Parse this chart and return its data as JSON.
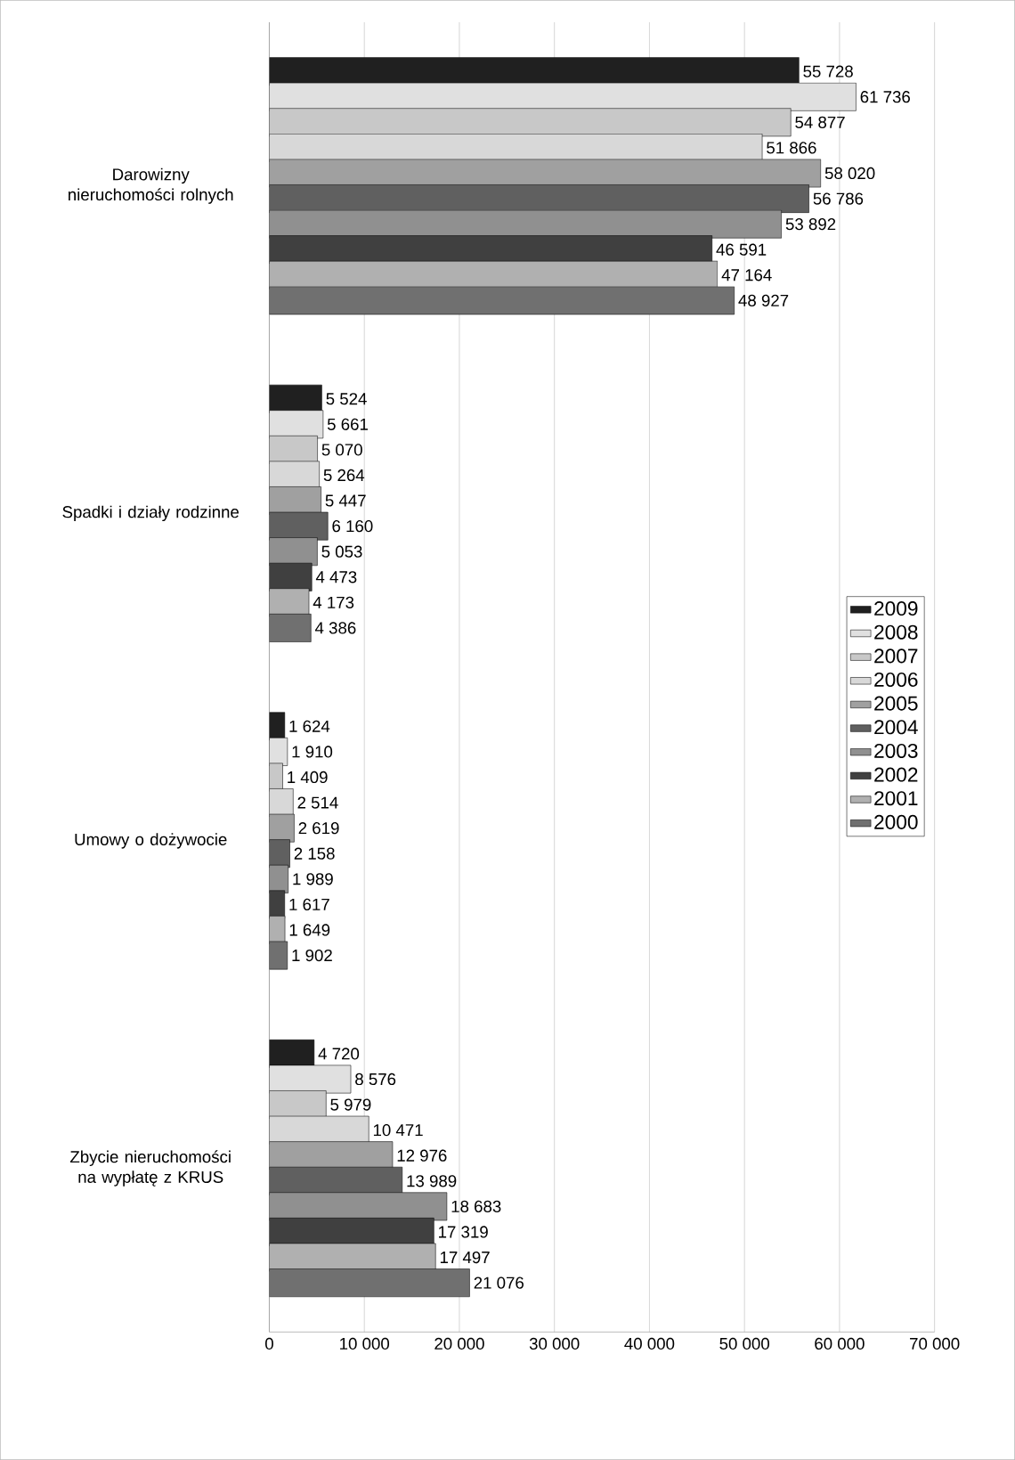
{
  "chart_data": {
    "type": "bar",
    "orientation": "horizontal",
    "categories": [
      "Darowizny nieruchomości rolnych",
      "Spadki i działy rodzinne",
      "Umowy o dożywocie",
      "Zbycie nieruchomości na wypłatę z KRUS"
    ],
    "series": [
      {
        "name": "2009",
        "color": "#202020",
        "values": [
          55728,
          5524,
          1624,
          4720
        ],
        "value_labels": [
          "55 728",
          "5 524",
          "1 624",
          "4 720"
        ]
      },
      {
        "name": "2008",
        "color": "#e0e0e0",
        "values": [
          61736,
          5661,
          1910,
          8576
        ],
        "value_labels": [
          "61 736",
          "5 661",
          "1 910",
          "8 576"
        ]
      },
      {
        "name": "2007",
        "color": "#c8c8c8",
        "values": [
          54877,
          5070,
          1409,
          5979
        ],
        "value_labels": [
          "54 877",
          "5 070",
          "1 409",
          "5 979"
        ]
      },
      {
        "name": "2006",
        "color": "#d8d8d8",
        "values": [
          51866,
          5264,
          2514,
          10471
        ],
        "value_labels": [
          "51 866",
          "5 264",
          "2 514",
          "10 471"
        ]
      },
      {
        "name": "2005",
        "color": "#a0a0a0",
        "values": [
          58020,
          5447,
          2619,
          12976
        ],
        "value_labels": [
          "58 020",
          "5 447",
          "2 619",
          "12 976"
        ]
      },
      {
        "name": "2004",
        "color": "#606060",
        "values": [
          56786,
          6160,
          2158,
          13989
        ],
        "value_labels": [
          "56 786",
          "6 160",
          "2 158",
          "13 989"
        ]
      },
      {
        "name": "2003",
        "color": "#909090",
        "values": [
          53892,
          5053,
          1989,
          18683
        ],
        "value_labels": [
          "53 892",
          "5 053",
          "1 989",
          "18 683"
        ]
      },
      {
        "name": "2002",
        "color": "#404040",
        "values": [
          46591,
          4473,
          1617,
          17319
        ],
        "value_labels": [
          "46 591",
          "4 473",
          "1 617",
          "17 319"
        ]
      },
      {
        "name": "2001",
        "color": "#b0b0b0",
        "values": [
          47164,
          4173,
          1649,
          17497
        ],
        "value_labels": [
          "47 164",
          "4 173",
          "1 649",
          "17 497"
        ]
      },
      {
        "name": "2000",
        "color": "#707070",
        "values": [
          48927,
          4386,
          1902,
          21076
        ],
        "value_labels": [
          "48 927",
          "4 386",
          "1 902",
          "21 076"
        ]
      }
    ],
    "xlim": [
      0,
      70000
    ],
    "xticks": [
      {
        "value": 0,
        "label": "0"
      },
      {
        "value": 10000,
        "label": "10 000"
      },
      {
        "value": 20000,
        "label": "20 000"
      },
      {
        "value": 30000,
        "label": "30 000"
      },
      {
        "value": 40000,
        "label": "40 000"
      },
      {
        "value": 50000,
        "label": "50 000"
      },
      {
        "value": 60000,
        "label": "60 000"
      },
      {
        "value": 70000,
        "label": "70 000"
      }
    ],
    "grid": "x",
    "legend": "right"
  }
}
